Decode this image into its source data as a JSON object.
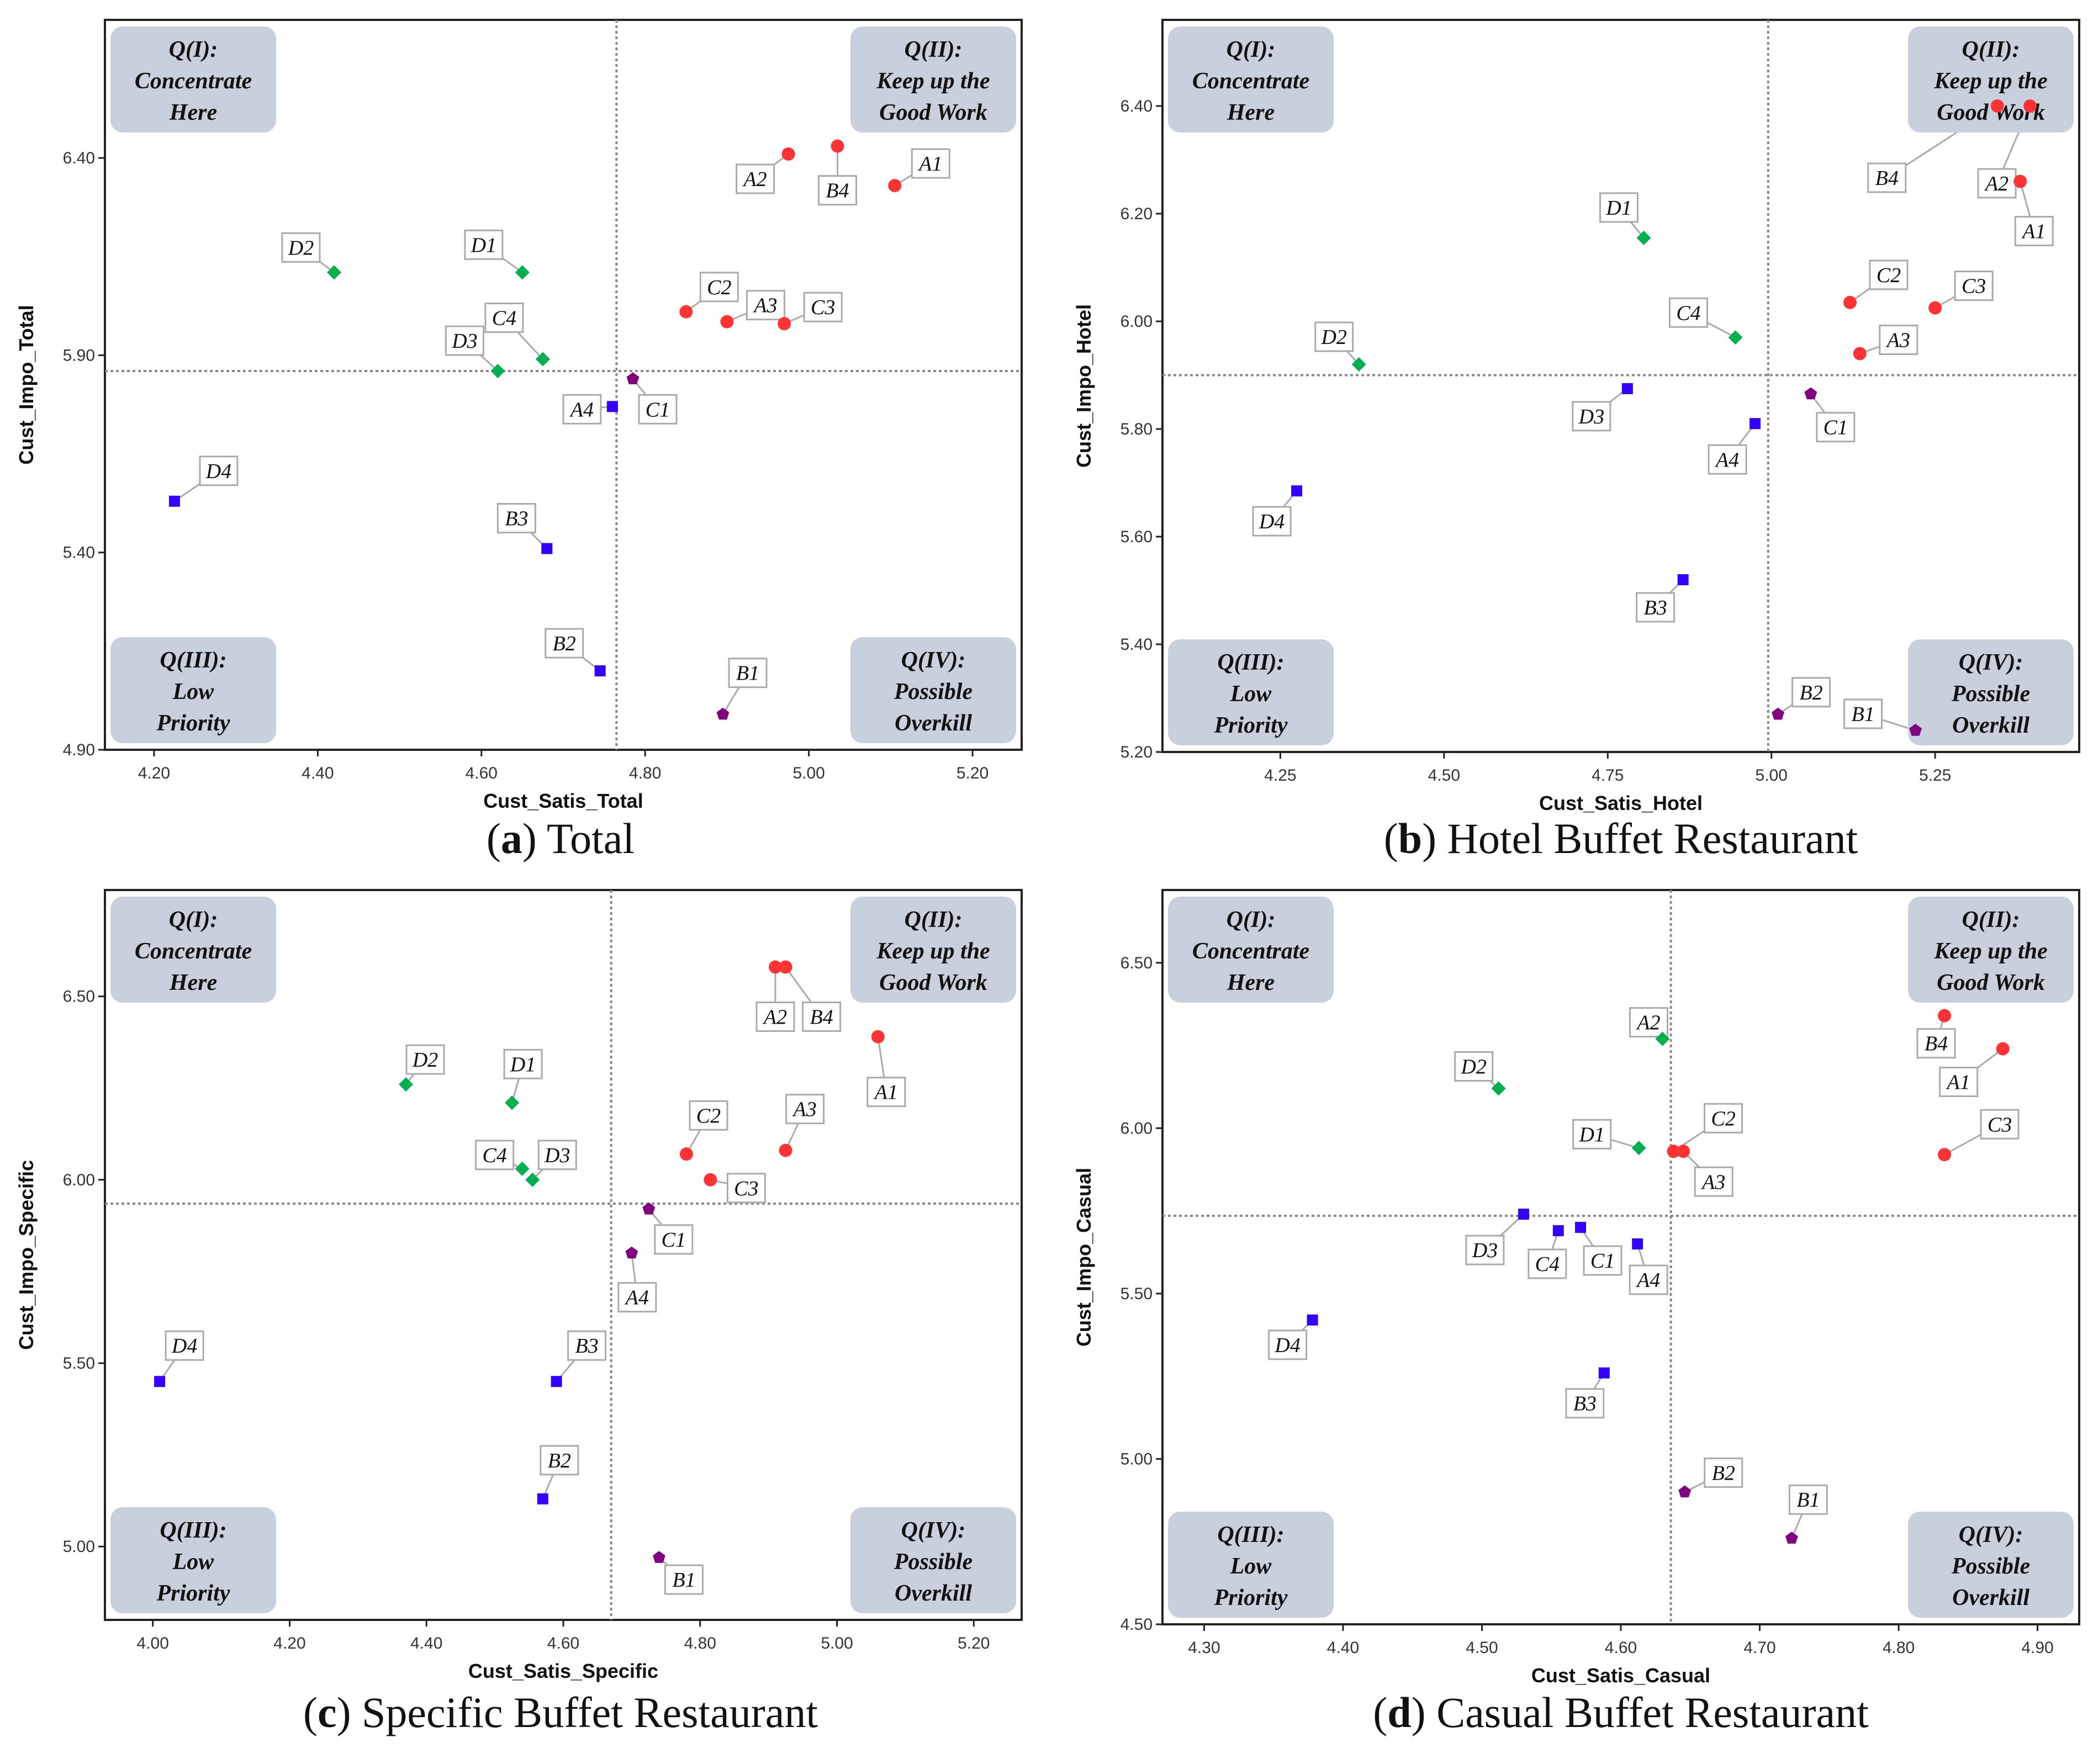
{
  "quadrant_labels": {
    "q1": [
      "Q(I):",
      "Concentrate",
      "Here"
    ],
    "q2": [
      "Q(II):",
      "Keep up the",
      "Good Work"
    ],
    "q3": [
      "Q(III):",
      "Low",
      "Priority"
    ],
    "q4": [
      "Q(IV):",
      "Possible",
      "Overkill"
    ]
  },
  "colors": {
    "A": "#ff3333",
    "B_high": "#ff3333",
    "green": "#00b050",
    "blue": "#3300ff",
    "purple": "#800080",
    "quadrant_box": "#c9d0dd"
  },
  "chart_data": [
    {
      "type": "scatter",
      "caption_letter": "a",
      "caption_text": "Total",
      "xlabel": "Cust_Satis_Total",
      "ylabel": "Cust_Impo_Total",
      "xlim": [
        4.14,
        5.26
      ],
      "ylim": [
        4.9,
        6.75
      ],
      "xticks": [
        "4.20",
        "4.40",
        "4.60",
        "4.80",
        "5.00",
        "5.20"
      ],
      "yticks": [
        "4.90",
        "5.40",
        "5.90",
        "6.40"
      ],
      "mean_x": 4.765,
      "mean_y": 5.86,
      "points": [
        {
          "label": "A1",
          "x": 5.105,
          "y": 6.33,
          "shape": "circle",
          "color": "red"
        },
        {
          "label": "A2",
          "x": 4.975,
          "y": 6.41,
          "shape": "circle",
          "color": "red"
        },
        {
          "label": "A3",
          "x": 4.9,
          "y": 5.985,
          "shape": "circle",
          "color": "red"
        },
        {
          "label": "A4",
          "x": 4.76,
          "y": 5.77,
          "shape": "square",
          "color": "blue"
        },
        {
          "label": "B1",
          "x": 4.895,
          "y": 4.99,
          "shape": "pentagon",
          "color": "purple"
        },
        {
          "label": "B2",
          "x": 4.745,
          "y": 5.1,
          "shape": "square",
          "color": "blue"
        },
        {
          "label": "B3",
          "x": 4.68,
          "y": 5.41,
          "shape": "square",
          "color": "blue"
        },
        {
          "label": "B4",
          "x": 5.035,
          "y": 6.43,
          "shape": "circle",
          "color": "red"
        },
        {
          "label": "C1",
          "x": 4.785,
          "y": 5.84,
          "shape": "pentagon",
          "color": "purple"
        },
        {
          "label": "C2",
          "x": 4.85,
          "y": 6.01,
          "shape": "circle",
          "color": "red"
        },
        {
          "label": "C3",
          "x": 4.97,
          "y": 5.98,
          "shape": "circle",
          "color": "red"
        },
        {
          "label": "C4",
          "x": 4.675,
          "y": 5.89,
          "shape": "diamond",
          "color": "green"
        },
        {
          "label": "D1",
          "x": 4.65,
          "y": 6.11,
          "shape": "diamond",
          "color": "green"
        },
        {
          "label": "D2",
          "x": 4.42,
          "y": 6.11,
          "shape": "diamond",
          "color": "green"
        },
        {
          "label": "D3",
          "x": 4.62,
          "y": 5.86,
          "shape": "diamond",
          "color": "green"
        },
        {
          "label": "D4",
          "x": 4.225,
          "y": 5.53,
          "shape": "square",
          "color": "blue"
        }
      ]
    },
    {
      "type": "scatter",
      "caption_letter": "b",
      "caption_text": "Hotel Buffet Restaurant",
      "xlabel": "Cust_Satis_Hotel",
      "ylabel": "Cust_Impo_Hotel",
      "xlim": [
        4.07,
        5.47
      ],
      "ylim": [
        5.2,
        6.56
      ],
      "xticks": [
        "4.25",
        "4.50",
        "4.75",
        "5.00",
        "5.25"
      ],
      "yticks": [
        "5.20",
        "5.40",
        "5.60",
        "5.80",
        "6.00",
        "6.20",
        "6.40"
      ],
      "mean_x": 4.995,
      "mean_y": 5.9,
      "points": [
        {
          "label": "A1",
          "x": 5.38,
          "y": 6.26,
          "shape": "circle",
          "color": "red"
        },
        {
          "label": "A2",
          "x": 5.395,
          "y": 6.4,
          "shape": "circle",
          "color": "red"
        },
        {
          "label": "A3",
          "x": 5.135,
          "y": 5.94,
          "shape": "circle",
          "color": "red"
        },
        {
          "label": "A4",
          "x": 4.975,
          "y": 5.81,
          "shape": "square",
          "color": "blue"
        },
        {
          "label": "B1",
          "x": 5.22,
          "y": 5.24,
          "shape": "pentagon",
          "color": "purple"
        },
        {
          "label": "B2",
          "x": 5.01,
          "y": 5.27,
          "shape": "pentagon",
          "color": "purple"
        },
        {
          "label": "B3",
          "x": 4.865,
          "y": 5.52,
          "shape": "square",
          "color": "blue"
        },
        {
          "label": "B4",
          "x": 5.345,
          "y": 6.4,
          "shape": "circle",
          "color": "red"
        },
        {
          "label": "C1",
          "x": 5.06,
          "y": 5.865,
          "shape": "pentagon",
          "color": "purple"
        },
        {
          "label": "C2",
          "x": 5.12,
          "y": 6.035,
          "shape": "circle",
          "color": "red"
        },
        {
          "label": "C3",
          "x": 5.25,
          "y": 6.025,
          "shape": "circle",
          "color": "red"
        },
        {
          "label": "C4",
          "x": 4.945,
          "y": 5.97,
          "shape": "diamond",
          "color": "green"
        },
        {
          "label": "D1",
          "x": 4.805,
          "y": 6.155,
          "shape": "diamond",
          "color": "green"
        },
        {
          "label": "D2",
          "x": 4.37,
          "y": 5.92,
          "shape": "diamond",
          "color": "green"
        },
        {
          "label": "D3",
          "x": 4.78,
          "y": 5.875,
          "shape": "square",
          "color": "blue"
        },
        {
          "label": "D4",
          "x": 4.275,
          "y": 5.685,
          "shape": "square",
          "color": "blue"
        }
      ]
    },
    {
      "type": "scatter",
      "caption_letter": "c",
      "caption_text": "Specific Buffet Restaurant",
      "xlabel": "Cust_Satis_Specific",
      "ylabel": "Cust_Impo_Specific",
      "xlim": [
        3.93,
        5.27
      ],
      "ylim": [
        4.8,
        6.79
      ],
      "xticks": [
        "4.00",
        "4.20",
        "4.40",
        "4.60",
        "4.80",
        "5.00",
        "5.20"
      ],
      "yticks": [
        "5.00",
        "5.50",
        "6.00",
        "6.50"
      ],
      "mean_x": 4.67,
      "mean_y": 5.935,
      "points": [
        {
          "label": "A1",
          "x": 5.06,
          "y": 6.39,
          "shape": "circle",
          "color": "red"
        },
        {
          "label": "A2",
          "x": 4.91,
          "y": 6.58,
          "shape": "circle",
          "color": "red"
        },
        {
          "label": "A3",
          "x": 4.925,
          "y": 6.08,
          "shape": "circle",
          "color": "red"
        },
        {
          "label": "A4",
          "x": 4.7,
          "y": 5.8,
          "shape": "pentagon",
          "color": "purple"
        },
        {
          "label": "B1",
          "x": 4.74,
          "y": 4.97,
          "shape": "pentagon",
          "color": "purple"
        },
        {
          "label": "B2",
          "x": 4.57,
          "y": 5.13,
          "shape": "square",
          "color": "blue"
        },
        {
          "label": "B3",
          "x": 4.59,
          "y": 5.45,
          "shape": "square",
          "color": "blue"
        },
        {
          "label": "B4",
          "x": 4.925,
          "y": 6.58,
          "shape": "circle",
          "color": "red"
        },
        {
          "label": "C1",
          "x": 4.725,
          "y": 5.92,
          "shape": "pentagon",
          "color": "purple"
        },
        {
          "label": "C2",
          "x": 4.78,
          "y": 6.07,
          "shape": "circle",
          "color": "red"
        },
        {
          "label": "C3",
          "x": 4.815,
          "y": 6.0,
          "shape": "circle",
          "color": "red"
        },
        {
          "label": "C4",
          "x": 4.54,
          "y": 6.03,
          "shape": "diamond",
          "color": "green"
        },
        {
          "label": "D1",
          "x": 4.525,
          "y": 6.21,
          "shape": "diamond",
          "color": "green"
        },
        {
          "label": "D2",
          "x": 4.37,
          "y": 6.26,
          "shape": "diamond",
          "color": "green"
        },
        {
          "label": "D3",
          "x": 4.555,
          "y": 6.0,
          "shape": "diamond",
          "color": "green"
        },
        {
          "label": "D4",
          "x": 4.01,
          "y": 5.45,
          "shape": "square",
          "color": "blue"
        }
      ]
    },
    {
      "type": "scatter",
      "caption_letter": "d",
      "caption_text": "Casual Buffet Restaurant",
      "xlabel": "Cust_Satis_Casual",
      "ylabel": "Cust_Impo_Casual",
      "xlim": [
        4.27,
        4.93
      ],
      "ylim": [
        4.5,
        6.72
      ],
      "xticks": [
        "4.30",
        "4.40",
        "4.50",
        "4.60",
        "4.70",
        "4.80",
        "4.90"
      ],
      "yticks": [
        "4.50",
        "5.00",
        "5.50",
        "6.00",
        "6.50"
      ],
      "mean_x": 4.636,
      "mean_y": 5.735,
      "points": [
        {
          "label": "A1",
          "x": 4.875,
          "y": 6.24,
          "shape": "circle",
          "color": "red"
        },
        {
          "label": "A2",
          "x": 4.63,
          "y": 6.27,
          "shape": "diamond",
          "color": "green"
        },
        {
          "label": "A3",
          "x": 4.645,
          "y": 5.93,
          "shape": "circle",
          "color": "red"
        },
        {
          "label": "A4",
          "x": 4.612,
          "y": 5.65,
          "shape": "square",
          "color": "blue"
        },
        {
          "label": "B1",
          "x": 4.723,
          "y": 4.76,
          "shape": "pentagon",
          "color": "purple"
        },
        {
          "label": "B2",
          "x": 4.646,
          "y": 4.9,
          "shape": "pentagon",
          "color": "purple"
        },
        {
          "label": "B3",
          "x": 4.588,
          "y": 5.26,
          "shape": "square",
          "color": "blue"
        },
        {
          "label": "B4",
          "x": 4.833,
          "y": 6.34,
          "shape": "circle",
          "color": "red"
        },
        {
          "label": "C1",
          "x": 4.571,
          "y": 5.7,
          "shape": "square",
          "color": "blue"
        },
        {
          "label": "C2",
          "x": 4.638,
          "y": 5.93,
          "shape": "circle",
          "color": "red"
        },
        {
          "label": "C3",
          "x": 4.833,
          "y": 5.92,
          "shape": "circle",
          "color": "red"
        },
        {
          "label": "C4",
          "x": 4.555,
          "y": 5.69,
          "shape": "square",
          "color": "blue"
        },
        {
          "label": "D1",
          "x": 4.613,
          "y": 5.94,
          "shape": "diamond",
          "color": "green"
        },
        {
          "label": "D2",
          "x": 4.512,
          "y": 6.12,
          "shape": "diamond",
          "color": "green"
        },
        {
          "label": "D3",
          "x": 4.53,
          "y": 5.74,
          "shape": "square",
          "color": "blue"
        },
        {
          "label": "D4",
          "x": 4.378,
          "y": 5.42,
          "shape": "square",
          "color": "blue"
        }
      ]
    }
  ]
}
